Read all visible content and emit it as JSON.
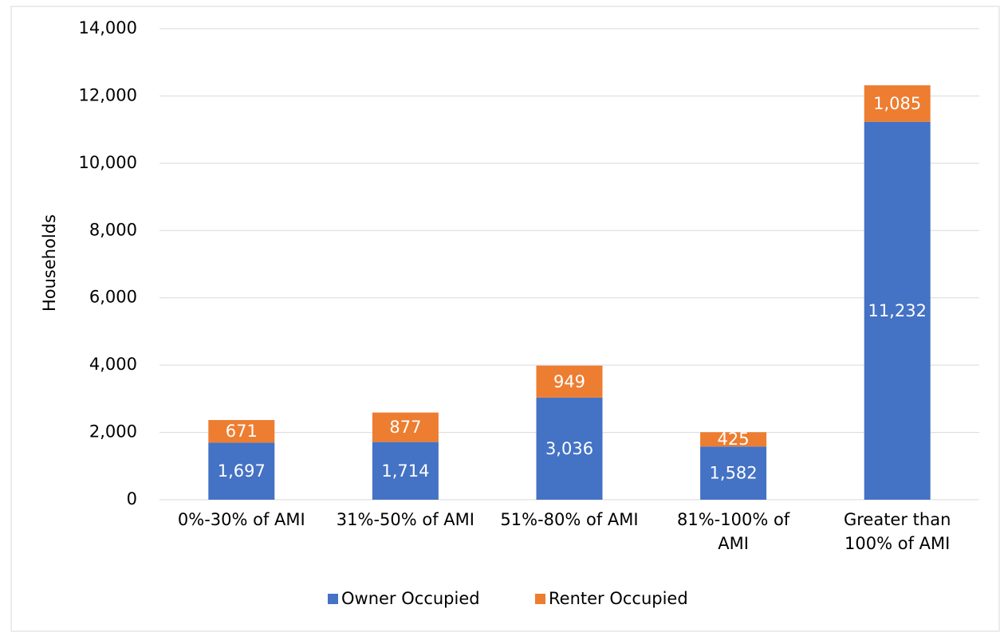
{
  "chart_data": {
    "type": "stacked_bar",
    "y_label": "Households",
    "categories": [
      "0%-30% of AMI",
      "31%-50% of AMI",
      "51%-80% of AMI",
      "81%-100% of AMI",
      "Greater than 100% of AMI"
    ],
    "series": [
      {
        "name": "Owner Occupied",
        "color": "#4472c4",
        "values": [
          1697,
          1714,
          3036,
          1582,
          11232
        ],
        "value_labels": [
          "1,697",
          "1,714",
          "3,036",
          "1,582",
          "11,232"
        ]
      },
      {
        "name": "Renter Occupied",
        "color": "#ed7d31",
        "values": [
          671,
          877,
          949,
          425,
          1085
        ],
        "value_labels": [
          "671",
          "877",
          "949",
          "425",
          "1,085"
        ]
      }
    ],
    "ylim": [
      0,
      14000
    ],
    "yticks": [
      0,
      {
        "value": 2000,
        "label": "2,000"
      },
      {
        "value": 4000,
        "label": "4,000"
      },
      {
        "value": 6000,
        "label": "6,000"
      },
      {
        "value": 8000,
        "label": "8,000"
      },
      {
        "value": 10000,
        "label": "10,000"
      },
      {
        "value": 12000,
        "label": "12,000"
      },
      {
        "value": 14000,
        "label": "14,000"
      }
    ],
    "grid": true,
    "legend": "bottom"
  }
}
